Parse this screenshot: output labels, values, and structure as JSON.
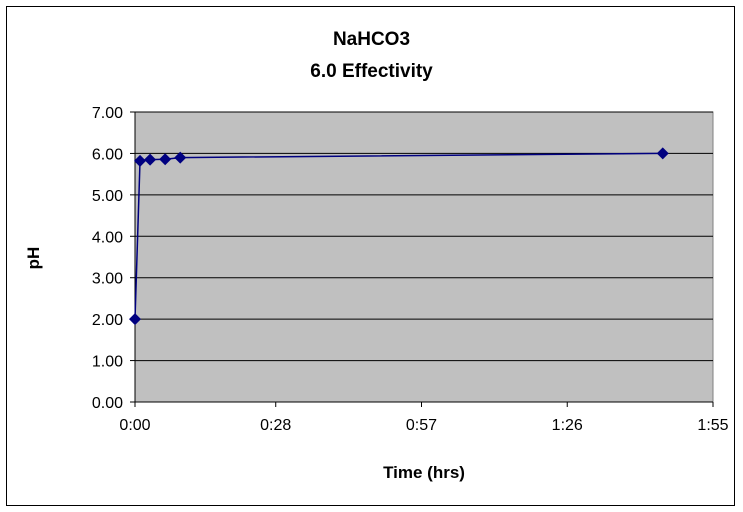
{
  "chart_data": {
    "type": "line",
    "title": "NaHCO3",
    "subtitle": "6.0 Effectivity",
    "xlabel": "Time (hrs)",
    "ylabel": "pH",
    "xlim": [
      "0:00",
      "1:55"
    ],
    "ylim": [
      0,
      7
    ],
    "x_tick_labels": [
      "0:00",
      "0:28",
      "0:57",
      "1:26",
      "1:55"
    ],
    "y_tick_labels": [
      "0.00",
      "1.00",
      "2.00",
      "3.00",
      "4.00",
      "5.00",
      "6.00",
      "7.00"
    ],
    "grid": "horizontal",
    "legend": "none",
    "series": [
      {
        "x": [
          "0:00",
          "0:01",
          "0:03",
          "0:06",
          "0:09",
          "1:45"
        ],
        "y": [
          2.0,
          5.82,
          5.85,
          5.86,
          5.9,
          6.0
        ]
      }
    ]
  },
  "colors": {
    "plot_background": "#c0c0c0",
    "series_color": "#000080",
    "gridline": "#000000"
  }
}
